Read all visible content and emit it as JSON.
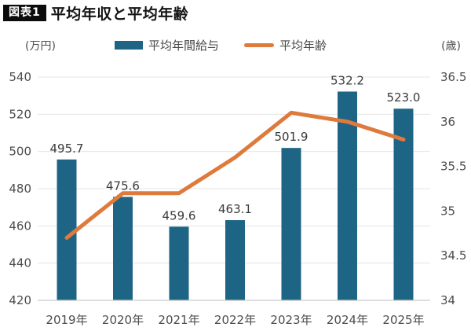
{
  "figure": {
    "tag": "図表1",
    "title": "平均年収と平均年齢"
  },
  "units": {
    "left": "(万円)",
    "right": "(歳)"
  },
  "legend": [
    {
      "label": "平均年間給与",
      "swatch": "bar"
    },
    {
      "label": "平均年齢",
      "swatch": "line"
    }
  ],
  "colors": {
    "bar": "#1e6484",
    "line": "#dd7a3c",
    "grid": "#e4e4e4",
    "baseline": "#c9c9c9",
    "tick_text": "#4d4d4d",
    "value_text": "#3a3a3a"
  },
  "chart_data": {
    "type": "bar+line",
    "title": "平均年収と平均年齢",
    "categories": [
      "2019年",
      "2020年",
      "2021年",
      "2022年",
      "2023年",
      "2024年",
      "2025年"
    ],
    "series": [
      {
        "name": "平均年間給与",
        "chart": "bar",
        "axis": "left",
        "unit": "万円",
        "color": "#1e6484",
        "values": [
          495.7,
          475.6,
          459.6,
          463.1,
          501.9,
          532.2,
          523.0
        ]
      },
      {
        "name": "平均年齢",
        "chart": "line",
        "axis": "right",
        "unit": "歳",
        "color": "#dd7a3c",
        "values": [
          34.7,
          35.2,
          35.2,
          35.6,
          36.1,
          36.0,
          35.8
        ]
      }
    ],
    "left_axis": {
      "unit": "(万円)",
      "range": [
        420,
        540
      ],
      "ticks": [
        540,
        520,
        500,
        480,
        460,
        440,
        420
      ]
    },
    "right_axis": {
      "unit": "(歳)",
      "range": [
        34,
        36.5
      ],
      "ticks": [
        "36.5",
        "36",
        "35.5",
        "35",
        "34.5",
        "34"
      ]
    },
    "grid": true,
    "legend_position": "top",
    "bar_value_labels": true,
    "value_label_decimals": 1
  }
}
